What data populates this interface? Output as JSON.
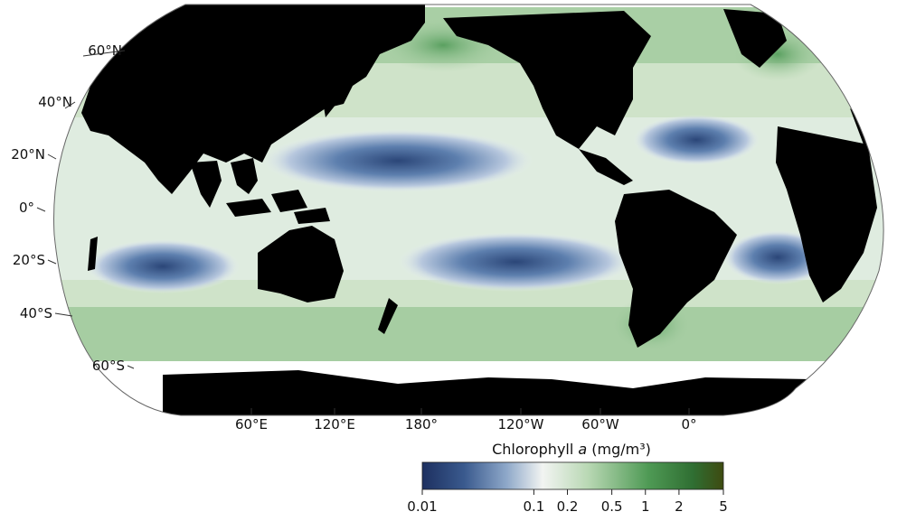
{
  "map": {
    "projection": "Robinson",
    "background_ocean_color": "#cfe3c9",
    "land_color": "#000000",
    "no_data_color": "#ffffff",
    "lat_labels": [
      "60°N",
      "40°N",
      "20°N",
      "0°",
      "20°S",
      "40°S",
      "60°S"
    ],
    "lon_labels": [
      "60°E",
      "120°E",
      "180°",
      "120°W",
      "60°W",
      "0°"
    ]
  },
  "colorbar": {
    "title_prefix": "Chlorophyll ",
    "title_italic": "a",
    "title_suffix": " (mg/m³)",
    "scale": "log",
    "range": [
      0.01,
      5
    ],
    "tick_labels": [
      "0.01",
      "0.1",
      "0.2",
      "0.5",
      "1",
      "2",
      "5"
    ],
    "tick_values": [
      0.01,
      0.1,
      0.2,
      0.5,
      1,
      2,
      5
    ],
    "colors": [
      "#1d3060",
      "#3a5a8e",
      "#8ea8c9",
      "#f2f4f2",
      "#b9d8b4",
      "#4f9a55",
      "#2f6e32",
      "#3e4a10"
    ]
  }
}
